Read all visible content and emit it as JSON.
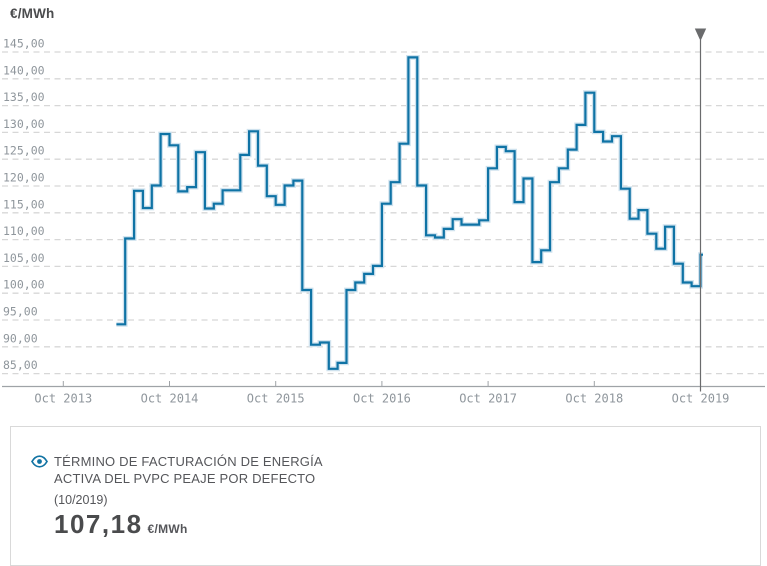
{
  "header": {
    "unit_label": "€/MWh"
  },
  "chart_data": {
    "type": "line",
    "subtype": "step",
    "title": "",
    "xlabel": "",
    "ylabel": "€/MWh",
    "grid": "horizontal-dashed",
    "legend_position": "bottom-card",
    "ylim": [
      85,
      145
    ],
    "y_ticks": [
      145,
      140,
      135,
      130,
      125,
      120,
      115,
      110,
      105,
      100,
      95,
      90,
      85
    ],
    "y_tick_labels": [
      "145,00",
      "140,00",
      "135,00",
      "130,00",
      "125,00",
      "120,00",
      "115,00",
      "110,00",
      "105,00",
      "100,00",
      "95,00",
      "90,00",
      "85,00"
    ],
    "x_tick_labels": [
      "Oct 2013",
      "Oct 2014",
      "Oct 2015",
      "Oct 2016",
      "Oct 2017",
      "Oct 2018",
      "Oct 2019"
    ],
    "cursor_position": "Oct 2019",
    "series": [
      {
        "name": "Término de facturación de energía activa del PVPC peaje por defecto",
        "unit": "€/MWh",
        "start_month": "2014-04",
        "end_month": "2019-10",
        "values": [
          94.2,
          110.2,
          119.1,
          115.9,
          120.1,
          129.7,
          127.6,
          119.0,
          119.8,
          126.3,
          115.8,
          116.7,
          119.2,
          119.2,
          125.8,
          130.2,
          123.8,
          118.1,
          116.5,
          120.1,
          121.0,
          100.6,
          90.4,
          90.8,
          85.9,
          87.0,
          100.6,
          102.0,
          103.6,
          105.1,
          116.7,
          120.7,
          127.9,
          144.0,
          120.1,
          110.8,
          110.4,
          112.0,
          113.8,
          112.8,
          112.8,
          113.6,
          123.3,
          127.3,
          126.5,
          117.0,
          121.4,
          105.8,
          108.0,
          120.7,
          123.3,
          126.8,
          131.4,
          137.4,
          130.1,
          128.3,
          129.3,
          119.5,
          113.9,
          115.5,
          111.1,
          108.3,
          112.4,
          105.5,
          102.0,
          101.3,
          107.18
        ]
      }
    ]
  },
  "info_card": {
    "title_lines": [
      "TÉRMINO DE FACTURACIÓN DE ENERGÍA",
      "ACTIVA DEL PVPC PEAJE POR DEFECTO"
    ],
    "period": "(10/2019)",
    "value": "107,18",
    "value_unit": "€/MWh"
  },
  "colors": {
    "line": "#0f73a5",
    "line_halo": "#cfe2ee",
    "grid": "#d7d7d7",
    "axis": "#9fa3a7",
    "tick_label": "#8f969c",
    "cursor": "#6a6b6d",
    "accent": "#1173a3",
    "card_border": "#d9d9d9",
    "text": "#55565a",
    "value_text": "#4a4b4d"
  }
}
